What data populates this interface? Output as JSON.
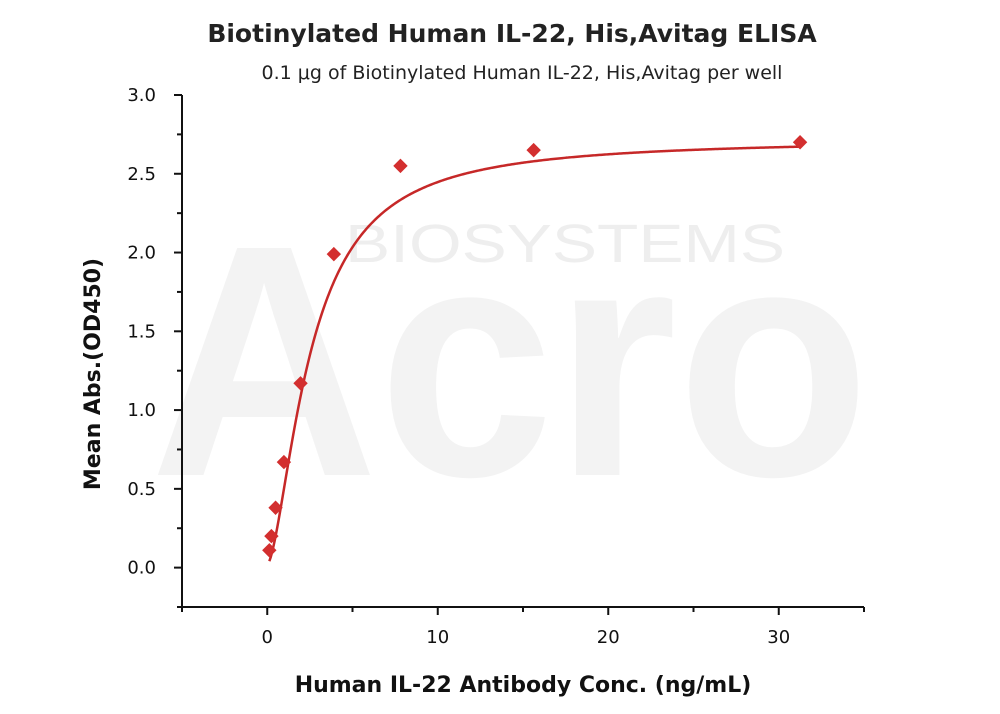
{
  "watermark": {
    "brand": "Acro",
    "sub": "BIOSYSTEMS"
  },
  "chart_data": {
    "type": "scatter",
    "title": "Biotinylated Human IL-22, His,Avitag ELISA",
    "subtitle": "0.1 μg of Biotinylated Human IL-22, His,Avitag per well",
    "xlabel": "Human IL-22 Antibody Conc. (ng/mL)",
    "ylabel": "Mean Abs.(OD450)",
    "xlim": [
      -5,
      35
    ],
    "ylim": [
      -0.25,
      3.0
    ],
    "x_ticks": [
      0,
      10,
      20,
      30
    ],
    "y_ticks": [
      0.0,
      0.5,
      1.0,
      1.5,
      2.0,
      2.5,
      3.0
    ],
    "y_tick_labels": [
      "0.0",
      "0.5",
      "1.0",
      "1.5",
      "2.0",
      "2.5",
      "3.0"
    ],
    "grid": false,
    "series": [
      {
        "marker": "diamond",
        "color": "#d32f2f",
        "x": [
          0.122,
          0.244,
          0.488,
          0.977,
          1.953,
          3.906,
          7.813,
          15.625,
          31.25
        ],
        "y": [
          0.11,
          0.2,
          0.38,
          0.67,
          1.17,
          1.99,
          2.55,
          2.65,
          2.7
        ]
      }
    ],
    "fit_curve": {
      "color": "#c62828"
    }
  }
}
